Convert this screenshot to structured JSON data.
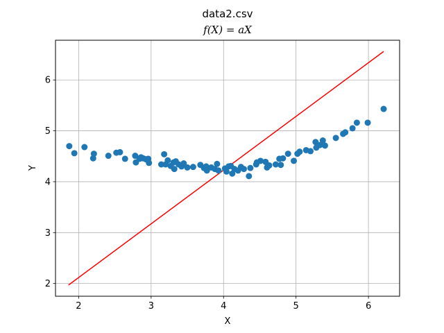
{
  "chart_data": {
    "type": "scatter",
    "title": "data2.csv",
    "subtitle": "f(X) = aX",
    "xlabel": "X",
    "ylabel": "Y",
    "xlim": [
      1.68,
      6.43
    ],
    "ylim": [
      1.75,
      6.78
    ],
    "xticks": [
      2,
      3,
      4,
      5,
      6
    ],
    "yticks": [
      2,
      3,
      4,
      5,
      6
    ],
    "grid": true,
    "colors": {
      "points": "#1f77b4",
      "line": "#ff0000",
      "grid": "#b0b0b0"
    },
    "series": [
      {
        "kind": "scatter",
        "points": [
          [
            1.87,
            4.7
          ],
          [
            1.94,
            4.56
          ],
          [
            2.08,
            4.68
          ],
          [
            2.2,
            4.46
          ],
          [
            2.21,
            4.55
          ],
          [
            2.41,
            4.51
          ],
          [
            2.52,
            4.57
          ],
          [
            2.57,
            4.58
          ],
          [
            2.64,
            4.45
          ],
          [
            2.78,
            4.51
          ],
          [
            2.79,
            4.38
          ],
          [
            2.84,
            4.45
          ],
          [
            2.86,
            4.48
          ],
          [
            2.89,
            4.46
          ],
          [
            2.93,
            4.44
          ],
          [
            2.96,
            4.45
          ],
          [
            2.97,
            4.37
          ],
          [
            3.14,
            4.34
          ],
          [
            3.18,
            4.54
          ],
          [
            3.2,
            4.34
          ],
          [
            3.23,
            4.42
          ],
          [
            3.27,
            4.31
          ],
          [
            3.31,
            4.38
          ],
          [
            3.32,
            4.25
          ],
          [
            3.34,
            4.4
          ],
          [
            3.38,
            4.34
          ],
          [
            3.42,
            4.3
          ],
          [
            3.45,
            4.36
          ],
          [
            3.5,
            4.28
          ],
          [
            3.58,
            4.29
          ],
          [
            3.68,
            4.33
          ],
          [
            3.73,
            4.27
          ],
          [
            3.76,
            4.3
          ],
          [
            3.77,
            4.22
          ],
          [
            3.83,
            4.28
          ],
          [
            3.88,
            4.25
          ],
          [
            3.91,
            4.35
          ],
          [
            3.93,
            4.22
          ],
          [
            4.02,
            4.26
          ],
          [
            4.04,
            4.2
          ],
          [
            4.07,
            4.3
          ],
          [
            4.1,
            4.31
          ],
          [
            4.12,
            4.16
          ],
          [
            4.15,
            4.25
          ],
          [
            4.2,
            4.22
          ],
          [
            4.24,
            4.29
          ],
          [
            4.28,
            4.25
          ],
          [
            4.35,
            4.11
          ],
          [
            4.37,
            4.27
          ],
          [
            4.45,
            4.34
          ],
          [
            4.46,
            4.38
          ],
          [
            4.51,
            4.41
          ],
          [
            4.58,
            4.39
          ],
          [
            4.6,
            4.28
          ],
          [
            4.63,
            4.32
          ],
          [
            4.72,
            4.34
          ],
          [
            4.77,
            4.45
          ],
          [
            4.79,
            4.33
          ],
          [
            4.82,
            4.46
          ],
          [
            4.89,
            4.55
          ],
          [
            4.97,
            4.41
          ],
          [
            5.02,
            4.55
          ],
          [
            5.05,
            4.59
          ],
          [
            5.14,
            4.62
          ],
          [
            5.2,
            4.6
          ],
          [
            5.27,
            4.78
          ],
          [
            5.28,
            4.67
          ],
          [
            5.33,
            4.72
          ],
          [
            5.37,
            4.81
          ],
          [
            5.4,
            4.71
          ],
          [
            5.55,
            4.86
          ],
          [
            5.65,
            4.94
          ],
          [
            5.68,
            4.97
          ],
          [
            5.78,
            5.05
          ],
          [
            5.84,
            5.16
          ],
          [
            5.99,
            5.16
          ],
          [
            6.21,
            5.43
          ]
        ]
      },
      {
        "kind": "line",
        "points": [
          [
            1.86,
            1.97
          ],
          [
            6.21,
            6.56
          ]
        ]
      }
    ]
  }
}
